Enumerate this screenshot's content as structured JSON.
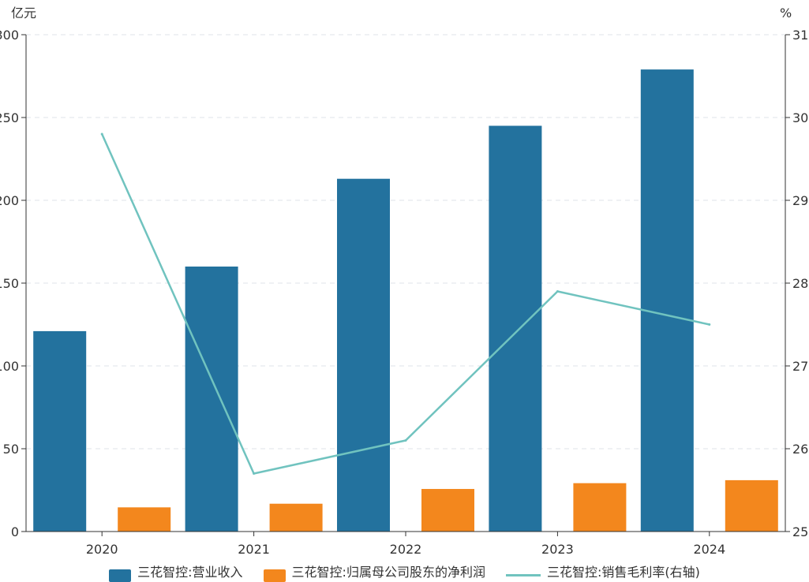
{
  "chart_data": {
    "type": "bar",
    "categories": [
      "2020",
      "2021",
      "2022",
      "2023",
      "2024"
    ],
    "series": [
      {
        "name": "三花智控:营业收入",
        "type": "bar",
        "axis": "left",
        "color": "#23729e",
        "values": [
          121,
          160,
          213,
          245,
          279
        ]
      },
      {
        "name": "三花智控:归属母公司股东的净利润",
        "type": "bar",
        "axis": "left",
        "color": "#f3871d",
        "values": [
          14.6,
          16.8,
          25.7,
          29.2,
          31.0
        ]
      },
      {
        "name": "三花智控:销售毛利率(右轴)",
        "type": "line",
        "axis": "right",
        "color": "#70c3bf",
        "values": [
          29.8,
          25.7,
          26.1,
          27.9,
          27.5
        ]
      }
    ],
    "left_axis": {
      "unit": "亿元",
      "ylim": [
        0,
        300
      ],
      "ticks": [
        "0",
        "50",
        "100",
        "150",
        "200",
        "250",
        "300"
      ]
    },
    "right_axis": {
      "unit": "%",
      "ylim": [
        25,
        31
      ],
      "ticks": [
        "25",
        "26",
        "27",
        "28",
        "29",
        "30",
        "31"
      ]
    },
    "grid": "horizontal-dashed",
    "legend_position": "bottom"
  }
}
